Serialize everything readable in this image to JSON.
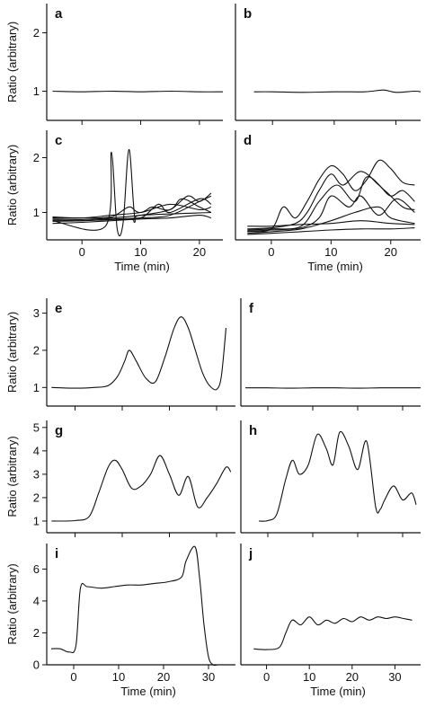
{
  "chart_data": [
    {
      "panel": "a",
      "type": "line",
      "ylabel": "Ratio (arbitrary)",
      "xlabel": "",
      "xlim": [
        -6,
        24
      ],
      "ylim": [
        0.5,
        2.5
      ],
      "yticks": [
        1,
        2
      ],
      "xticks": [],
      "tick_labels": [
        "1",
        "2"
      ],
      "series": [
        {
          "x": [
            -5,
            0,
            5,
            10,
            15,
            20,
            24
          ],
          "values": [
            1.0,
            0.99,
            1.0,
            0.99,
            1.0,
            0.99,
            0.99
          ]
        }
      ]
    },
    {
      "panel": "b",
      "type": "line",
      "xlim": [
        -6,
        24
      ],
      "ylim": [
        0.5,
        2.5
      ],
      "yticks": [],
      "xticks": [],
      "series": [
        {
          "x": [
            -3,
            0,
            5,
            10,
            15,
            18,
            20,
            23,
            24
          ],
          "values": [
            0.99,
            0.99,
            0.98,
            0.99,
            0.99,
            1.02,
            0.98,
            1.0,
            0.99
          ]
        }
      ]
    },
    {
      "panel": "c",
      "type": "line",
      "ylabel": "Ratio (arbitrary)",
      "xlabel": "Time (min)",
      "xlim": [
        -6,
        24
      ],
      "ylim": [
        0.5,
        2.5
      ],
      "yticks": [
        1,
        2
      ],
      "xticks": [
        0,
        10,
        20
      ],
      "tick_labels": [
        "1",
        "2",
        "0",
        "10",
        "20"
      ],
      "series": [
        {
          "x": [
            -5,
            4,
            5,
            6,
            7,
            8,
            9,
            10,
            22
          ],
          "values": [
            0.85,
            0.75,
            2.1,
            0.7,
            0.8,
            2.15,
            0.9,
            0.95,
            1.0
          ]
        },
        {
          "x": [
            -5,
            0,
            5,
            10,
            12,
            15,
            18,
            20,
            22
          ],
          "values": [
            0.92,
            0.9,
            0.95,
            1.0,
            1.1,
            1.05,
            1.3,
            1.2,
            1.35
          ]
        },
        {
          "x": [
            -5,
            0,
            5,
            10,
            15,
            17,
            20,
            22
          ],
          "values": [
            0.88,
            0.87,
            0.9,
            0.95,
            1.05,
            1.25,
            1.1,
            1.0
          ]
        },
        {
          "x": [
            -5,
            0,
            5,
            10,
            15,
            20,
            22
          ],
          "values": [
            0.84,
            0.85,
            0.88,
            0.9,
            0.95,
            1.2,
            1.3
          ]
        },
        {
          "x": [
            -5,
            0,
            5,
            10,
            15,
            20,
            22
          ],
          "values": [
            0.8,
            0.82,
            0.85,
            0.88,
            0.9,
            0.95,
            0.9
          ]
        },
        {
          "x": [
            -5,
            0,
            5,
            8,
            10,
            15,
            20,
            22
          ],
          "values": [
            0.9,
            0.9,
            0.92,
            1.1,
            1.0,
            1.15,
            1.05,
            1.1
          ]
        },
        {
          "x": [
            -5,
            0,
            5,
            10,
            13,
            15,
            20,
            22
          ],
          "values": [
            0.86,
            0.85,
            0.87,
            0.9,
            1.15,
            1.0,
            1.25,
            1.15
          ]
        }
      ]
    },
    {
      "panel": "d",
      "type": "line",
      "xlabel": "Time (min)",
      "xlim": [
        -6,
        25
      ],
      "ylim": [
        0.5,
        2.5
      ],
      "yticks": [],
      "xticks": [
        0,
        10,
        20
      ],
      "tick_labels": [
        "0",
        "10",
        "20"
      ],
      "series": [
        {
          "x": [
            -4,
            0,
            2,
            4,
            6,
            8,
            10,
            12,
            14,
            16,
            18,
            20,
            22,
            24
          ],
          "values": [
            0.65,
            0.7,
            1.1,
            0.9,
            1.2,
            1.6,
            1.85,
            1.7,
            1.4,
            1.6,
            1.95,
            1.8,
            1.55,
            1.5
          ]
        },
        {
          "x": [
            -4,
            0,
            4,
            6,
            8,
            10,
            12,
            15,
            18,
            20,
            22,
            24
          ],
          "values": [
            0.7,
            0.72,
            0.8,
            1.0,
            1.4,
            1.7,
            1.5,
            1.75,
            1.5,
            1.3,
            1.4,
            1.2
          ]
        },
        {
          "x": [
            -4,
            0,
            5,
            8,
            11,
            14,
            16,
            19,
            22,
            24
          ],
          "values": [
            0.68,
            0.7,
            0.75,
            1.2,
            1.5,
            1.2,
            1.65,
            1.4,
            1.1,
            1.05
          ]
        },
        {
          "x": [
            -4,
            0,
            5,
            8,
            10,
            13,
            15,
            18,
            21,
            24
          ],
          "values": [
            0.66,
            0.68,
            0.72,
            0.9,
            1.3,
            1.1,
            1.3,
            0.95,
            1.25,
            1.0
          ]
        },
        {
          "x": [
            -4,
            0,
            5,
            10,
            14,
            18,
            20,
            24
          ],
          "values": [
            0.62,
            0.65,
            0.7,
            0.85,
            1.0,
            1.1,
            0.9,
            0.8
          ]
        },
        {
          "x": [
            -4,
            0,
            5,
            10,
            15,
            20,
            24
          ],
          "values": [
            0.6,
            0.62,
            0.65,
            0.68,
            0.7,
            0.7,
            0.72
          ]
        },
        {
          "x": [
            -4,
            0,
            5,
            10,
            15,
            20,
            24
          ],
          "values": [
            0.75,
            0.75,
            0.78,
            0.8,
            0.85,
            0.8,
            0.78
          ]
        }
      ]
    },
    {
      "panel": "e",
      "type": "line",
      "ylabel": "Ratio (arbitrary)",
      "xlim": [
        -6,
        34
      ],
      "ylim": [
        0.5,
        3.4
      ],
      "yticks": [
        1,
        2,
        3
      ],
      "xticks": [],
      "tick_labels": [
        "1",
        "2",
        "3"
      ],
      "series": [
        {
          "x": [
            -5,
            0,
            4,
            7,
            9,
            10.5,
            11.5,
            13,
            15,
            17,
            19,
            21,
            22.5,
            24,
            25.5,
            27,
            28.5,
            30,
            31,
            32
          ],
          "values": [
            1.0,
            0.98,
            1.0,
            1.05,
            1.3,
            1.7,
            2.0,
            1.7,
            1.25,
            1.15,
            1.8,
            2.6,
            2.9,
            2.6,
            2.0,
            1.4,
            1.05,
            0.95,
            1.3,
            2.6
          ]
        }
      ]
    },
    {
      "panel": "f",
      "type": "line",
      "xlim": [
        -6,
        34
      ],
      "ylim": [
        0.5,
        3.4
      ],
      "yticks": [],
      "xticks": [],
      "series": [
        {
          "x": [
            -5,
            0,
            5,
            10,
            15,
            20,
            25,
            30,
            34
          ],
          "values": [
            0.99,
            0.99,
            0.98,
            0.99,
            0.99,
            0.98,
            0.99,
            0.99,
            0.99
          ]
        }
      ]
    },
    {
      "panel": "g",
      "type": "line",
      "ylabel": "Ratio (arbitrary)",
      "xlim": [
        -6,
        34
      ],
      "ylim": [
        0.5,
        5.3
      ],
      "yticks": [
        1,
        2,
        3,
        4,
        5
      ],
      "xticks": [],
      "tick_labels": [
        "1",
        "2",
        "3",
        "4",
        "5"
      ],
      "series": [
        {
          "x": [
            -5,
            0,
            3,
            5,
            7,
            8.5,
            10,
            12,
            14,
            16,
            18,
            20,
            22,
            24,
            26,
            28,
            30,
            32,
            33
          ],
          "values": [
            1.0,
            1.02,
            1.2,
            2.2,
            3.3,
            3.6,
            3.2,
            2.4,
            2.5,
            3.0,
            3.8,
            3.0,
            2.1,
            2.9,
            1.6,
            2.0,
            2.6,
            3.3,
            3.1
          ]
        }
      ]
    },
    {
      "panel": "h",
      "type": "line",
      "xlim": [
        -6,
        34
      ],
      "ylim": [
        0.5,
        5.3
      ],
      "yticks": [],
      "xticks": [],
      "series": [
        {
          "x": [
            -2,
            0,
            2,
            4,
            5.5,
            7,
            9,
            11,
            13,
            14.5,
            16,
            18,
            20,
            22,
            24,
            25,
            26,
            28,
            30,
            32,
            33
          ],
          "values": [
            1.0,
            1.02,
            1.3,
            2.8,
            3.6,
            3.0,
            3.4,
            4.7,
            4.1,
            3.4,
            4.8,
            4.2,
            3.2,
            4.4,
            1.6,
            1.5,
            1.9,
            2.5,
            1.9,
            2.2,
            1.7
          ]
        }
      ]
    },
    {
      "panel": "i",
      "type": "line",
      "ylabel": "Ratio (arbitrary)",
      "xlabel": "Time (min)",
      "xlim": [
        -6,
        36
      ],
      "ylim": [
        0,
        7.6
      ],
      "yticks": [
        0,
        2,
        4,
        6
      ],
      "xticks": [
        0,
        10,
        20,
        30
      ],
      "tick_labels": [
        "0",
        "2",
        "4",
        "6",
        "0",
        "10",
        "20",
        "30"
      ],
      "series": [
        {
          "x": [
            -5,
            -3,
            -1,
            0.5,
            1.5,
            3,
            6,
            9,
            12,
            15,
            18,
            21,
            24,
            25,
            27,
            28,
            29,
            30,
            31,
            32,
            33,
            35
          ],
          "values": [
            1.0,
            1.0,
            0.8,
            1.2,
            4.8,
            4.9,
            4.8,
            4.9,
            5.0,
            5.0,
            5.1,
            5.2,
            5.5,
            6.5,
            7.4,
            5.5,
            2.5,
            0.5,
            0.0,
            0.0,
            0.0,
            0.0
          ]
        }
      ]
    },
    {
      "panel": "j",
      "type": "line",
      "xlabel": "Time (min)",
      "xlim": [
        -6,
        36
      ],
      "ylim": [
        0,
        7.6
      ],
      "yticks": [],
      "xticks": [
        0,
        10,
        20,
        30
      ],
      "tick_labels": [
        "0",
        "10",
        "20",
        "30"
      ],
      "series": [
        {
          "x": [
            -3,
            0,
            3,
            4.5,
            6,
            8,
            10,
            12,
            14,
            16,
            18,
            20,
            22,
            24,
            26,
            28,
            30,
            32,
            34
          ],
          "values": [
            1.0,
            0.95,
            1.1,
            2.0,
            2.8,
            2.5,
            3.0,
            2.5,
            2.8,
            2.6,
            2.9,
            2.7,
            3.0,
            2.8,
            3.0,
            2.9,
            3.0,
            2.9,
            2.8
          ]
        }
      ]
    }
  ]
}
